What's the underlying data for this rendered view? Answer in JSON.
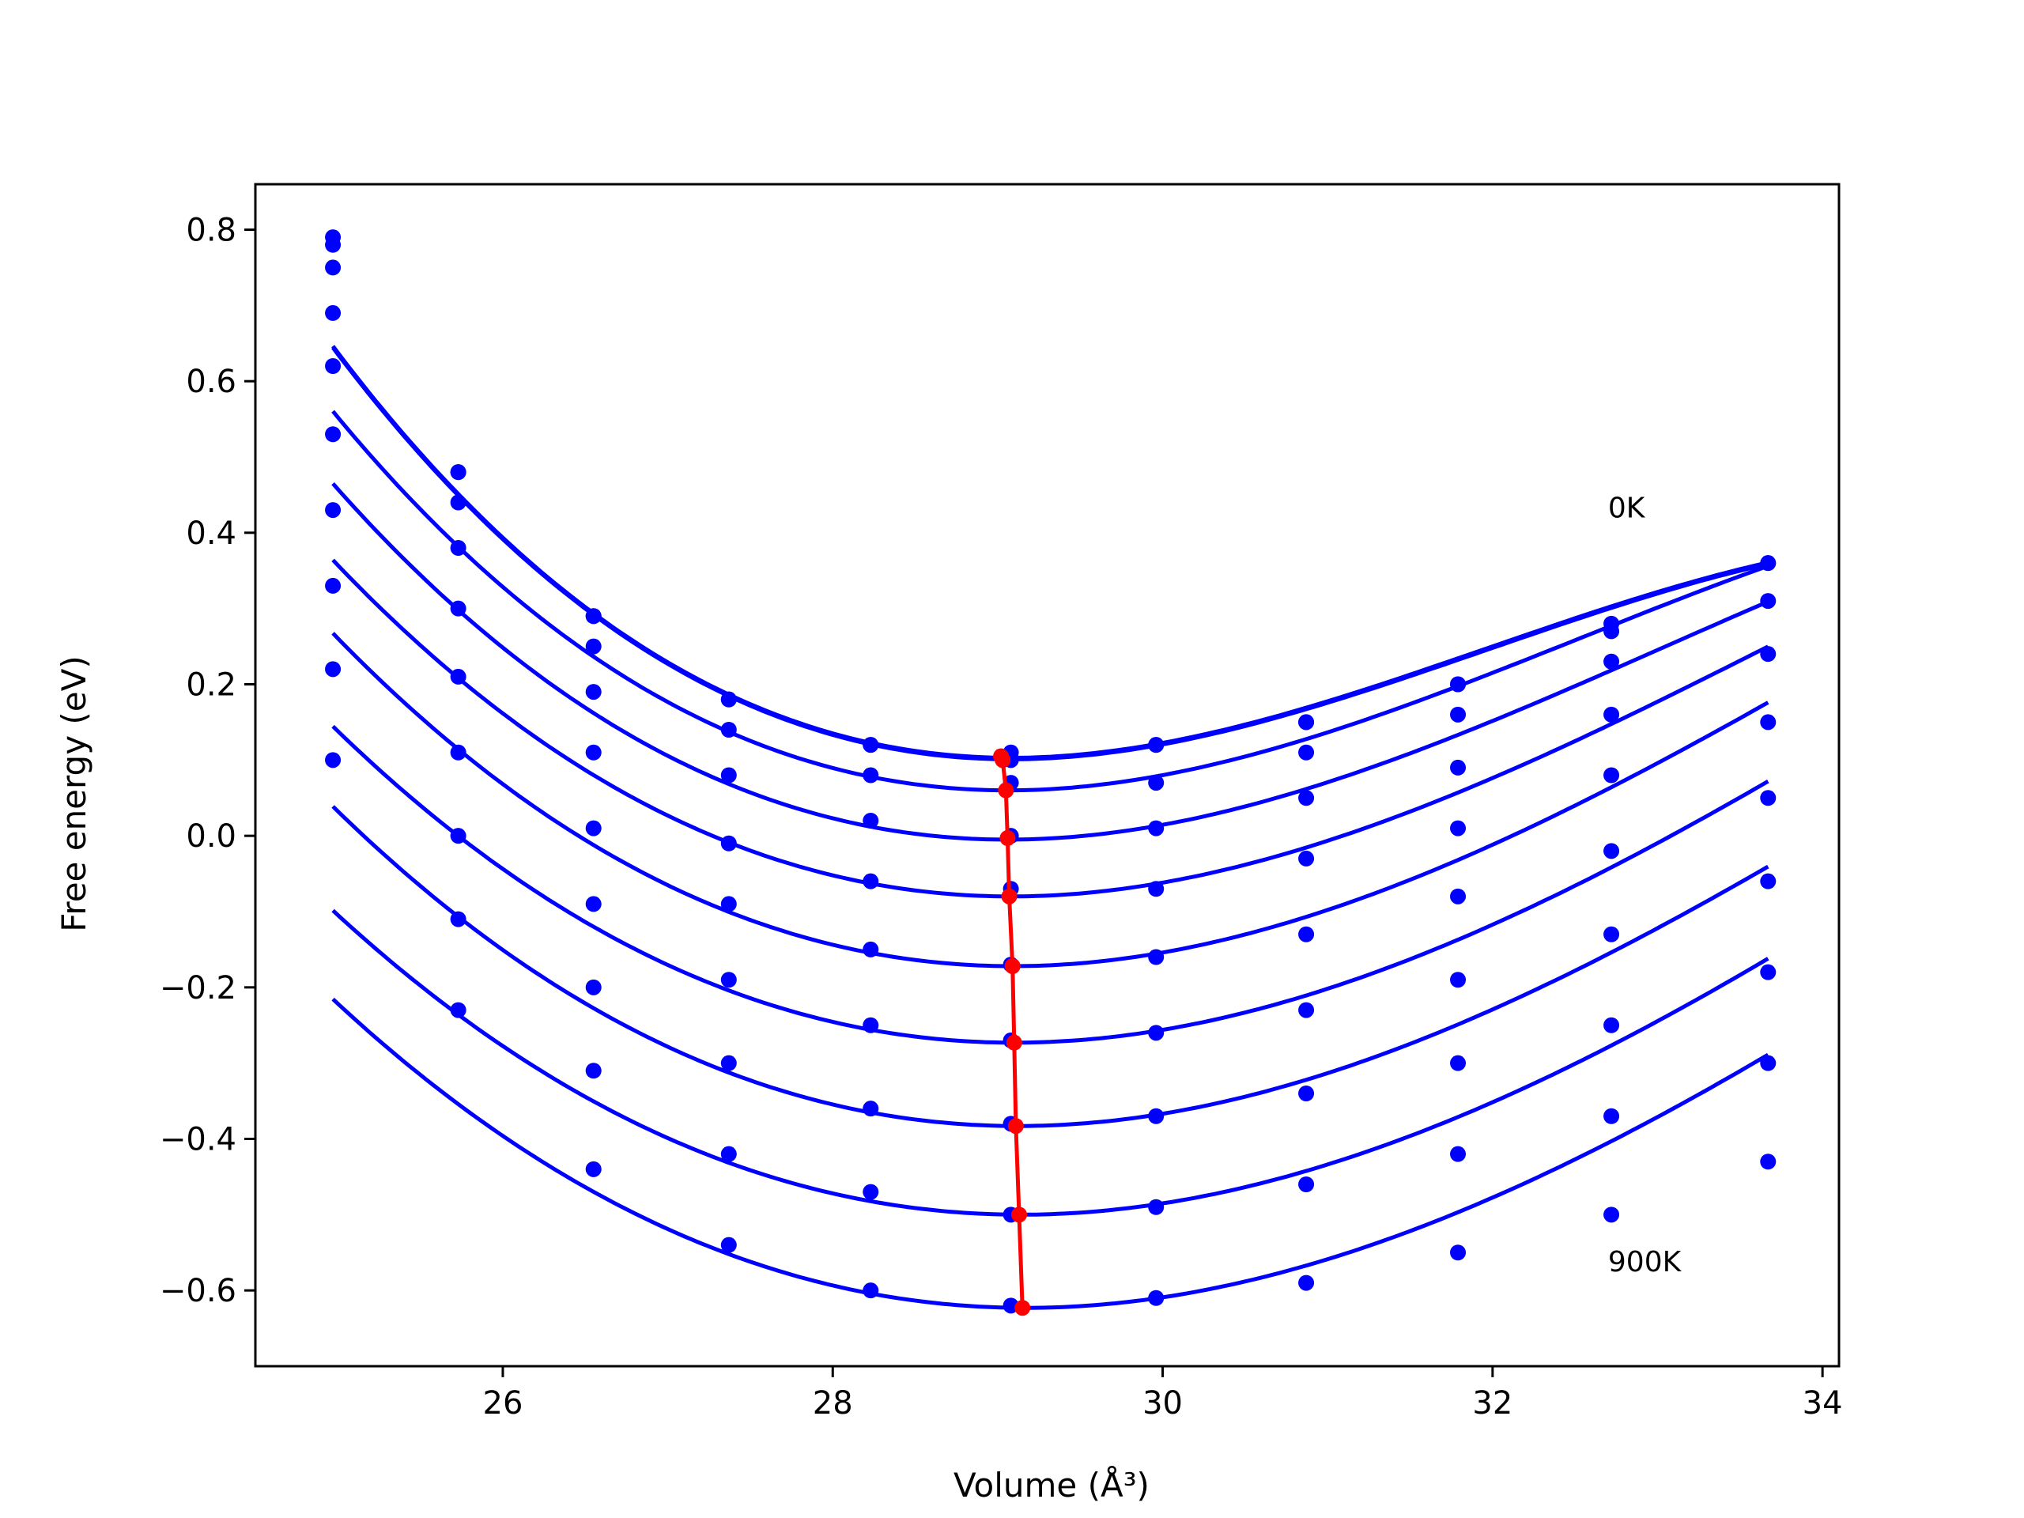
{
  "chart_data": {
    "type": "scatter",
    "xlabel": "Volume (Å³)",
    "ylabel": "Free energy (eV)",
    "xlim": [
      24.5,
      34.1
    ],
    "ylim": [
      -0.7,
      0.86
    ],
    "x_ticks": [
      26,
      28,
      30,
      32,
      34
    ],
    "x_tick_labels": [
      "26",
      "28",
      "30",
      "32",
      "34"
    ],
    "y_ticks": [
      -0.6,
      -0.4,
      -0.2,
      0.0,
      0.2,
      0.4,
      0.6,
      0.8
    ],
    "y_tick_labels": [
      "−0.6",
      "−0.4",
      "−0.2",
      "0.0",
      "0.2",
      "0.4",
      "0.6",
      "0.8"
    ],
    "grid": false,
    "legend": "none",
    "annotations": [
      {
        "text": "0K",
        "x": 32.7,
        "y": 0.42
      },
      {
        "text": "900K",
        "x": 32.7,
        "y": -0.575
      }
    ],
    "colors": {
      "curves": "#0000ff",
      "minimum_line": "#ff0000"
    },
    "x": [
      24.97,
      25.73,
      26.55,
      27.37,
      28.23,
      29.08,
      29.96,
      30.87,
      31.79,
      32.72,
      33.67
    ],
    "series": [
      {
        "values": [
          0.79,
          0.48,
          0.29,
          0.18,
          0.12,
          0.11,
          0.12,
          0.15,
          0.2,
          0.27,
          0.36
        ]
      },
      {
        "values": [
          0.78,
          0.48,
          0.29,
          0.18,
          0.12,
          0.1,
          0.12,
          0.15,
          0.2,
          0.28,
          0.36
        ]
      },
      {
        "values": [
          0.75,
          0.44,
          0.25,
          0.14,
          0.08,
          0.07,
          0.07,
          0.11,
          0.16,
          0.23,
          0.31
        ]
      },
      {
        "values": [
          0.69,
          0.38,
          0.19,
          0.08,
          0.02,
          0.0,
          0.01,
          0.05,
          0.09,
          0.16,
          0.24
        ]
      },
      {
        "values": [
          0.62,
          0.3,
          0.11,
          -0.01,
          -0.06,
          -0.07,
          -0.07,
          -0.03,
          0.01,
          0.08,
          0.15
        ]
      },
      {
        "values": [
          0.53,
          0.21,
          0.01,
          -0.09,
          -0.15,
          -0.17,
          -0.16,
          -0.13,
          -0.08,
          -0.02,
          0.05
        ]
      },
      {
        "values": [
          0.43,
          0.11,
          -0.09,
          -0.19,
          -0.25,
          -0.27,
          -0.26,
          -0.23,
          -0.19,
          -0.13,
          -0.06
        ]
      },
      {
        "values": [
          0.33,
          0.0,
          -0.2,
          -0.3,
          -0.36,
          -0.38,
          -0.37,
          -0.34,
          -0.3,
          -0.25,
          -0.18
        ]
      },
      {
        "values": [
          0.22,
          -0.11,
          -0.31,
          -0.42,
          -0.47,
          -0.5,
          -0.49,
          -0.46,
          -0.42,
          -0.37,
          -0.3
        ]
      },
      {
        "values": [
          0.1,
          -0.23,
          -0.44,
          -0.54,
          -0.6,
          -0.62,
          -0.61,
          -0.59,
          -0.55,
          -0.5,
          -0.43
        ]
      }
    ],
    "fit_curves": [
      {
        "x0": 29.08,
        "y0": 0.103,
        "a": 0.026,
        "b": 0.015
      },
      {
        "x0": 29.08,
        "y0": 0.101,
        "a": 0.026,
        "b": 0.015
      },
      {
        "x0": 29.06,
        "y0": 0.06,
        "a": 0.025,
        "b": 0.012
      },
      {
        "x0": 29.06,
        "y0": -0.005,
        "a": 0.024,
        "b": 0.01
      },
      {
        "x0": 29.08,
        "y0": -0.08,
        "a": 0.023,
        "b": 0.008
      },
      {
        "x0": 29.09,
        "y0": -0.172,
        "a": 0.023,
        "b": 0.007
      },
      {
        "x0": 29.1,
        "y0": -0.273,
        "a": 0.022,
        "b": 0.006
      },
      {
        "x0": 29.12,
        "y0": -0.383,
        "a": 0.022,
        "b": 0.006
      },
      {
        "x0": 29.14,
        "y0": -0.5,
        "a": 0.021,
        "b": 0.005
      },
      {
        "x0": 29.17,
        "y0": -0.623,
        "a": 0.021,
        "b": 0.005
      }
    ],
    "minimum_line": {
      "x": [
        29.02,
        29.03,
        29.05,
        29.06,
        29.07,
        29.09,
        29.1,
        29.11,
        29.13,
        29.15
      ],
      "y": [
        0.105,
        0.1,
        0.06,
        -0.003,
        -0.08,
        -0.172,
        -0.273,
        -0.383,
        -0.5,
        -0.623
      ]
    }
  }
}
